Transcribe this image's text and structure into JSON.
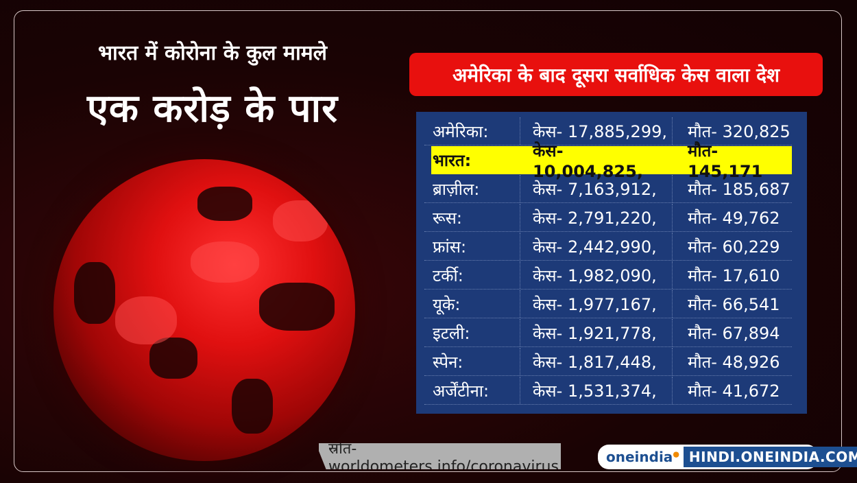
{
  "headline": {
    "line1": "भारत में कोरोना के कुल मामले",
    "line2": "एक करोड़ के पार"
  },
  "banner": "अमेरिका के बाद दूसरा सर्वाधिक केस वाला देश",
  "table": {
    "highlight_color": "#ffff00",
    "rows": [
      {
        "country": "अमेरिका:",
        "cases": "केस- 17,885,299,",
        "deaths": "मौत- 320,825"
      },
      {
        "country": "भारत:",
        "cases": "केस- 10,004,825,",
        "deaths": "मौत- 145,171",
        "highlighted": true
      },
      {
        "country": "ब्राज़ील:",
        "cases": "केस- 7,163,912,",
        "deaths": "मौत- 185,687"
      },
      {
        "country": "रूस:",
        "cases": "केस- 2,791,220,",
        "deaths": "मौत- 49,762"
      },
      {
        "country": "फ्रांस:",
        "cases": "केस- 2,442,990,",
        "deaths": "मौत- 60,229"
      },
      {
        "country": "टर्की:",
        "cases": "केस- 1,982,090,",
        "deaths": "मौत- 17,610"
      },
      {
        "country": "यूके:",
        "cases": "केस- 1,977,167,",
        "deaths": "मौत- 66,541"
      },
      {
        "country": "इटली:",
        "cases": "केस- 1,921,778,",
        "deaths": "मौत- 67,894"
      },
      {
        "country": "स्पेन:",
        "cases": "केस- 1,817,448,",
        "deaths": "मौत- 48,926"
      },
      {
        "country": "अर्जेंटीना:",
        "cases": "केस- 1,531,374,",
        "deaths": "मौत- 41,672"
      }
    ]
  },
  "source": "स्रोत- worldometers.info/coronavirus",
  "logo": {
    "brand": "oneindia",
    "site": "HINDI.ONEINDIA.COM"
  },
  "colors": {
    "banner": "#e8100e",
    "table_bg": "#1d3a78",
    "brand_blue": "#1d4f91"
  }
}
